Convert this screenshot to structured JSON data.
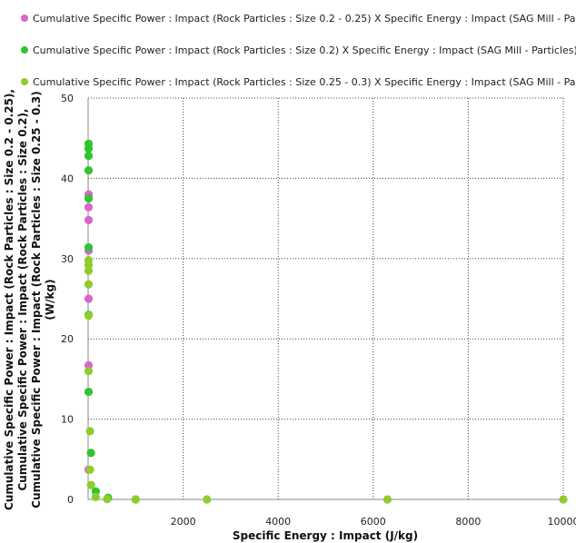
{
  "chart_data": {
    "type": "scatter",
    "title": "",
    "xlabel": "Specific Energy : Impact (J/kg)",
    "ylabel_lines": [
      "Cumulative Specific Power : Impact (Rock Particles : Size 0.2 - 0.25),",
      "Cumulative Specific Power : Impact (Rock Particles : Size 0.2),",
      "Cumulative Specific Power : Impact (Rock Particles : Size 0.25 - 0.3)",
      "(W/kg)"
    ],
    "xlim": [
      0,
      10000
    ],
    "ylim": [
      0,
      50
    ],
    "x_ticks": [
      2000,
      4000,
      6000,
      8000,
      10000
    ],
    "x_tick_labels": [
      "2000",
      "4000",
      "6000",
      "8000",
      "10000"
    ],
    "y_ticks": [
      0,
      10,
      20,
      30,
      40,
      50
    ],
    "y_tick_labels": [
      "0",
      "10",
      "20",
      "30",
      "40",
      "50"
    ],
    "grid": true,
    "legend_placement": "top",
    "series": [
      {
        "name": "Cumulative Specific Power : Impact (Rock Particles : Size 0.2 - 0.25) X Specific Energy : Impact (SAG Mill - Particles)",
        "color": "#d966cc",
        "points": [
          [
            10,
            38.0
          ],
          [
            10,
            36.4
          ],
          [
            10,
            34.8
          ],
          [
            10,
            31.0
          ],
          [
            10,
            25.0
          ],
          [
            10,
            16.7
          ],
          [
            10,
            3.7
          ]
        ]
      },
      {
        "name": "Cumulative Specific Power : Impact (Rock Particles : Size 0.2) X Specific Energy : Impact (SAG Mill - Particles)",
        "color": "#2ec52e",
        "points": [
          [
            10,
            44.3
          ],
          [
            10,
            43.7
          ],
          [
            10,
            42.8
          ],
          [
            10,
            41.0
          ],
          [
            10,
            37.5
          ],
          [
            10,
            31.4
          ],
          [
            10,
            23.0
          ],
          [
            10,
            13.4
          ],
          [
            60,
            5.8
          ],
          [
            160,
            1.0
          ],
          [
            420,
            0.2
          ],
          [
            1000,
            0.0
          ]
        ]
      },
      {
        "name": "Cumulative Specific Power : Impact (Rock Particles : Size 0.25 - 0.3) X Specific Energy : Impact (SAG Mill - Particles)",
        "color": "#8fcc2c",
        "points": [
          [
            10,
            29.8
          ],
          [
            10,
            29.2
          ],
          [
            10,
            28.5
          ],
          [
            10,
            26.8
          ],
          [
            10,
            22.9
          ],
          [
            10,
            16.0
          ],
          [
            40,
            8.5
          ],
          [
            40,
            3.7
          ],
          [
            60,
            1.8
          ],
          [
            160,
            0.3
          ],
          [
            400,
            0.05
          ],
          [
            1000,
            0.0
          ],
          [
            2500,
            0.0
          ],
          [
            6300,
            0.0
          ],
          [
            10000,
            0.0
          ]
        ]
      }
    ]
  }
}
